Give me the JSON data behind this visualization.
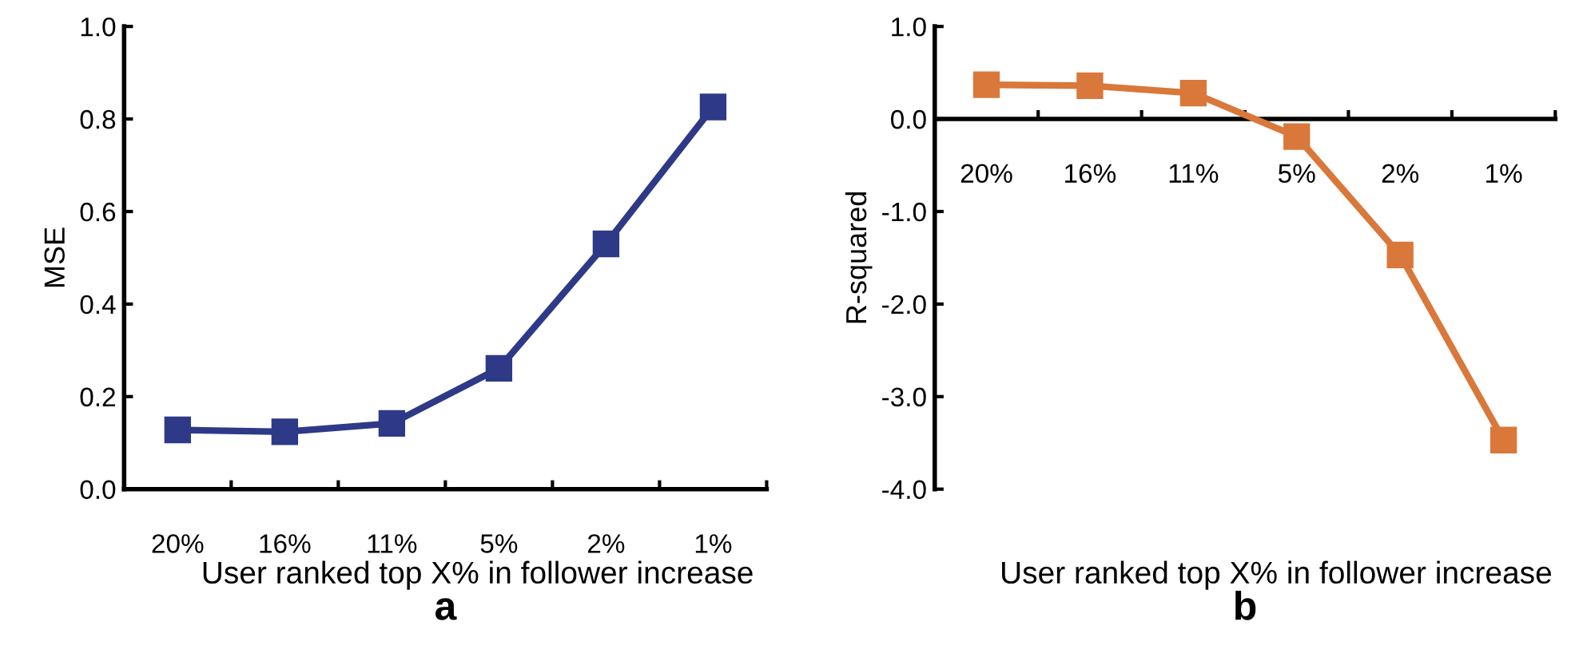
{
  "chart_data": [
    {
      "type": "line",
      "title": "a",
      "xlabel": "User ranked top X% in follower increase",
      "ylabel": "MSE",
      "categories": [
        "20%",
        "16%",
        "11%",
        "5%",
        "2%",
        "1%"
      ],
      "series": [
        {
          "color": "#2e3a87",
          "values": [
            0.128,
            0.124,
            0.142,
            0.261,
            0.53,
            0.826
          ]
        }
      ],
      "ylim": [
        0.0,
        1.0
      ],
      "yticks": [
        {
          "value": 0.0,
          "label": "0.0"
        },
        0.2,
        0.4,
        0.6,
        0.8,
        {
          "value": 1.0,
          "label": "1.0"
        }
      ],
      "marker": "square",
      "line_style": "solid",
      "grid": false
    },
    {
      "type": "line",
      "title": "b",
      "xlabel": "User ranked top X% in follower increase",
      "ylabel": "R-squared",
      "categories": [
        "20%",
        "16%",
        "11%",
        "5%",
        "2%",
        "1%"
      ],
      "series": [
        {
          "color": "#d9783a",
          "values": [
            0.37,
            0.36,
            0.28,
            -0.19,
            -1.47,
            -3.47
          ]
        }
      ],
      "ylim": [
        -4.0,
        1.0
      ],
      "yticks": [
        {
          "value": -4.0,
          "label": "-4.0"
        },
        {
          "value": -3.0,
          "label": "-3.0"
        },
        {
          "value": -2.0,
          "label": "-2.0"
        },
        {
          "value": -1.0,
          "label": "-1.0"
        },
        {
          "value": 0.0,
          "label": "0.0"
        },
        {
          "value": 1.0,
          "label": "1.0"
        }
      ],
      "marker": "square",
      "line_style": "solid",
      "grid": false
    }
  ]
}
